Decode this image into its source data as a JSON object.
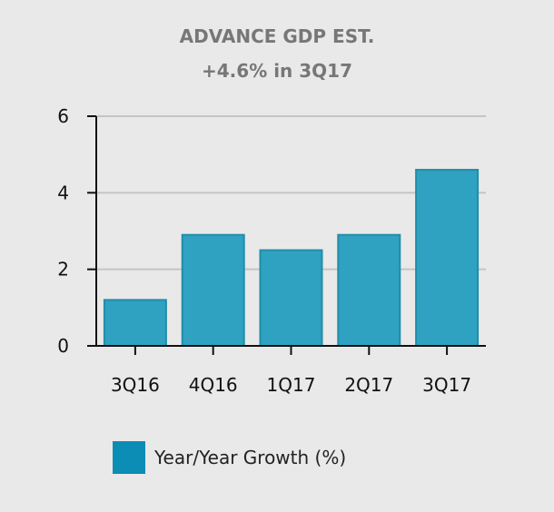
{
  "chart_data": {
    "type": "bar",
    "title": "ADVANCE GDP EST.",
    "subtitle": "+4.6% in 3Q17",
    "categories": [
      "3Q16",
      "4Q16",
      "1Q17",
      "2Q17",
      "3Q17"
    ],
    "series": [
      {
        "name": "Year/Year Growth (%)",
        "values": [
          1.2,
          2.9,
          2.5,
          2.9,
          4.6
        ],
        "color": "#2ea2c0",
        "stroke": "#1f8ea9"
      }
    ],
    "ylim": [
      0,
      6
    ],
    "yticks": [
      0,
      2,
      4,
      6
    ],
    "grid": true,
    "legend_position": "bottom-left",
    "legend_color": "#0b8db5"
  }
}
